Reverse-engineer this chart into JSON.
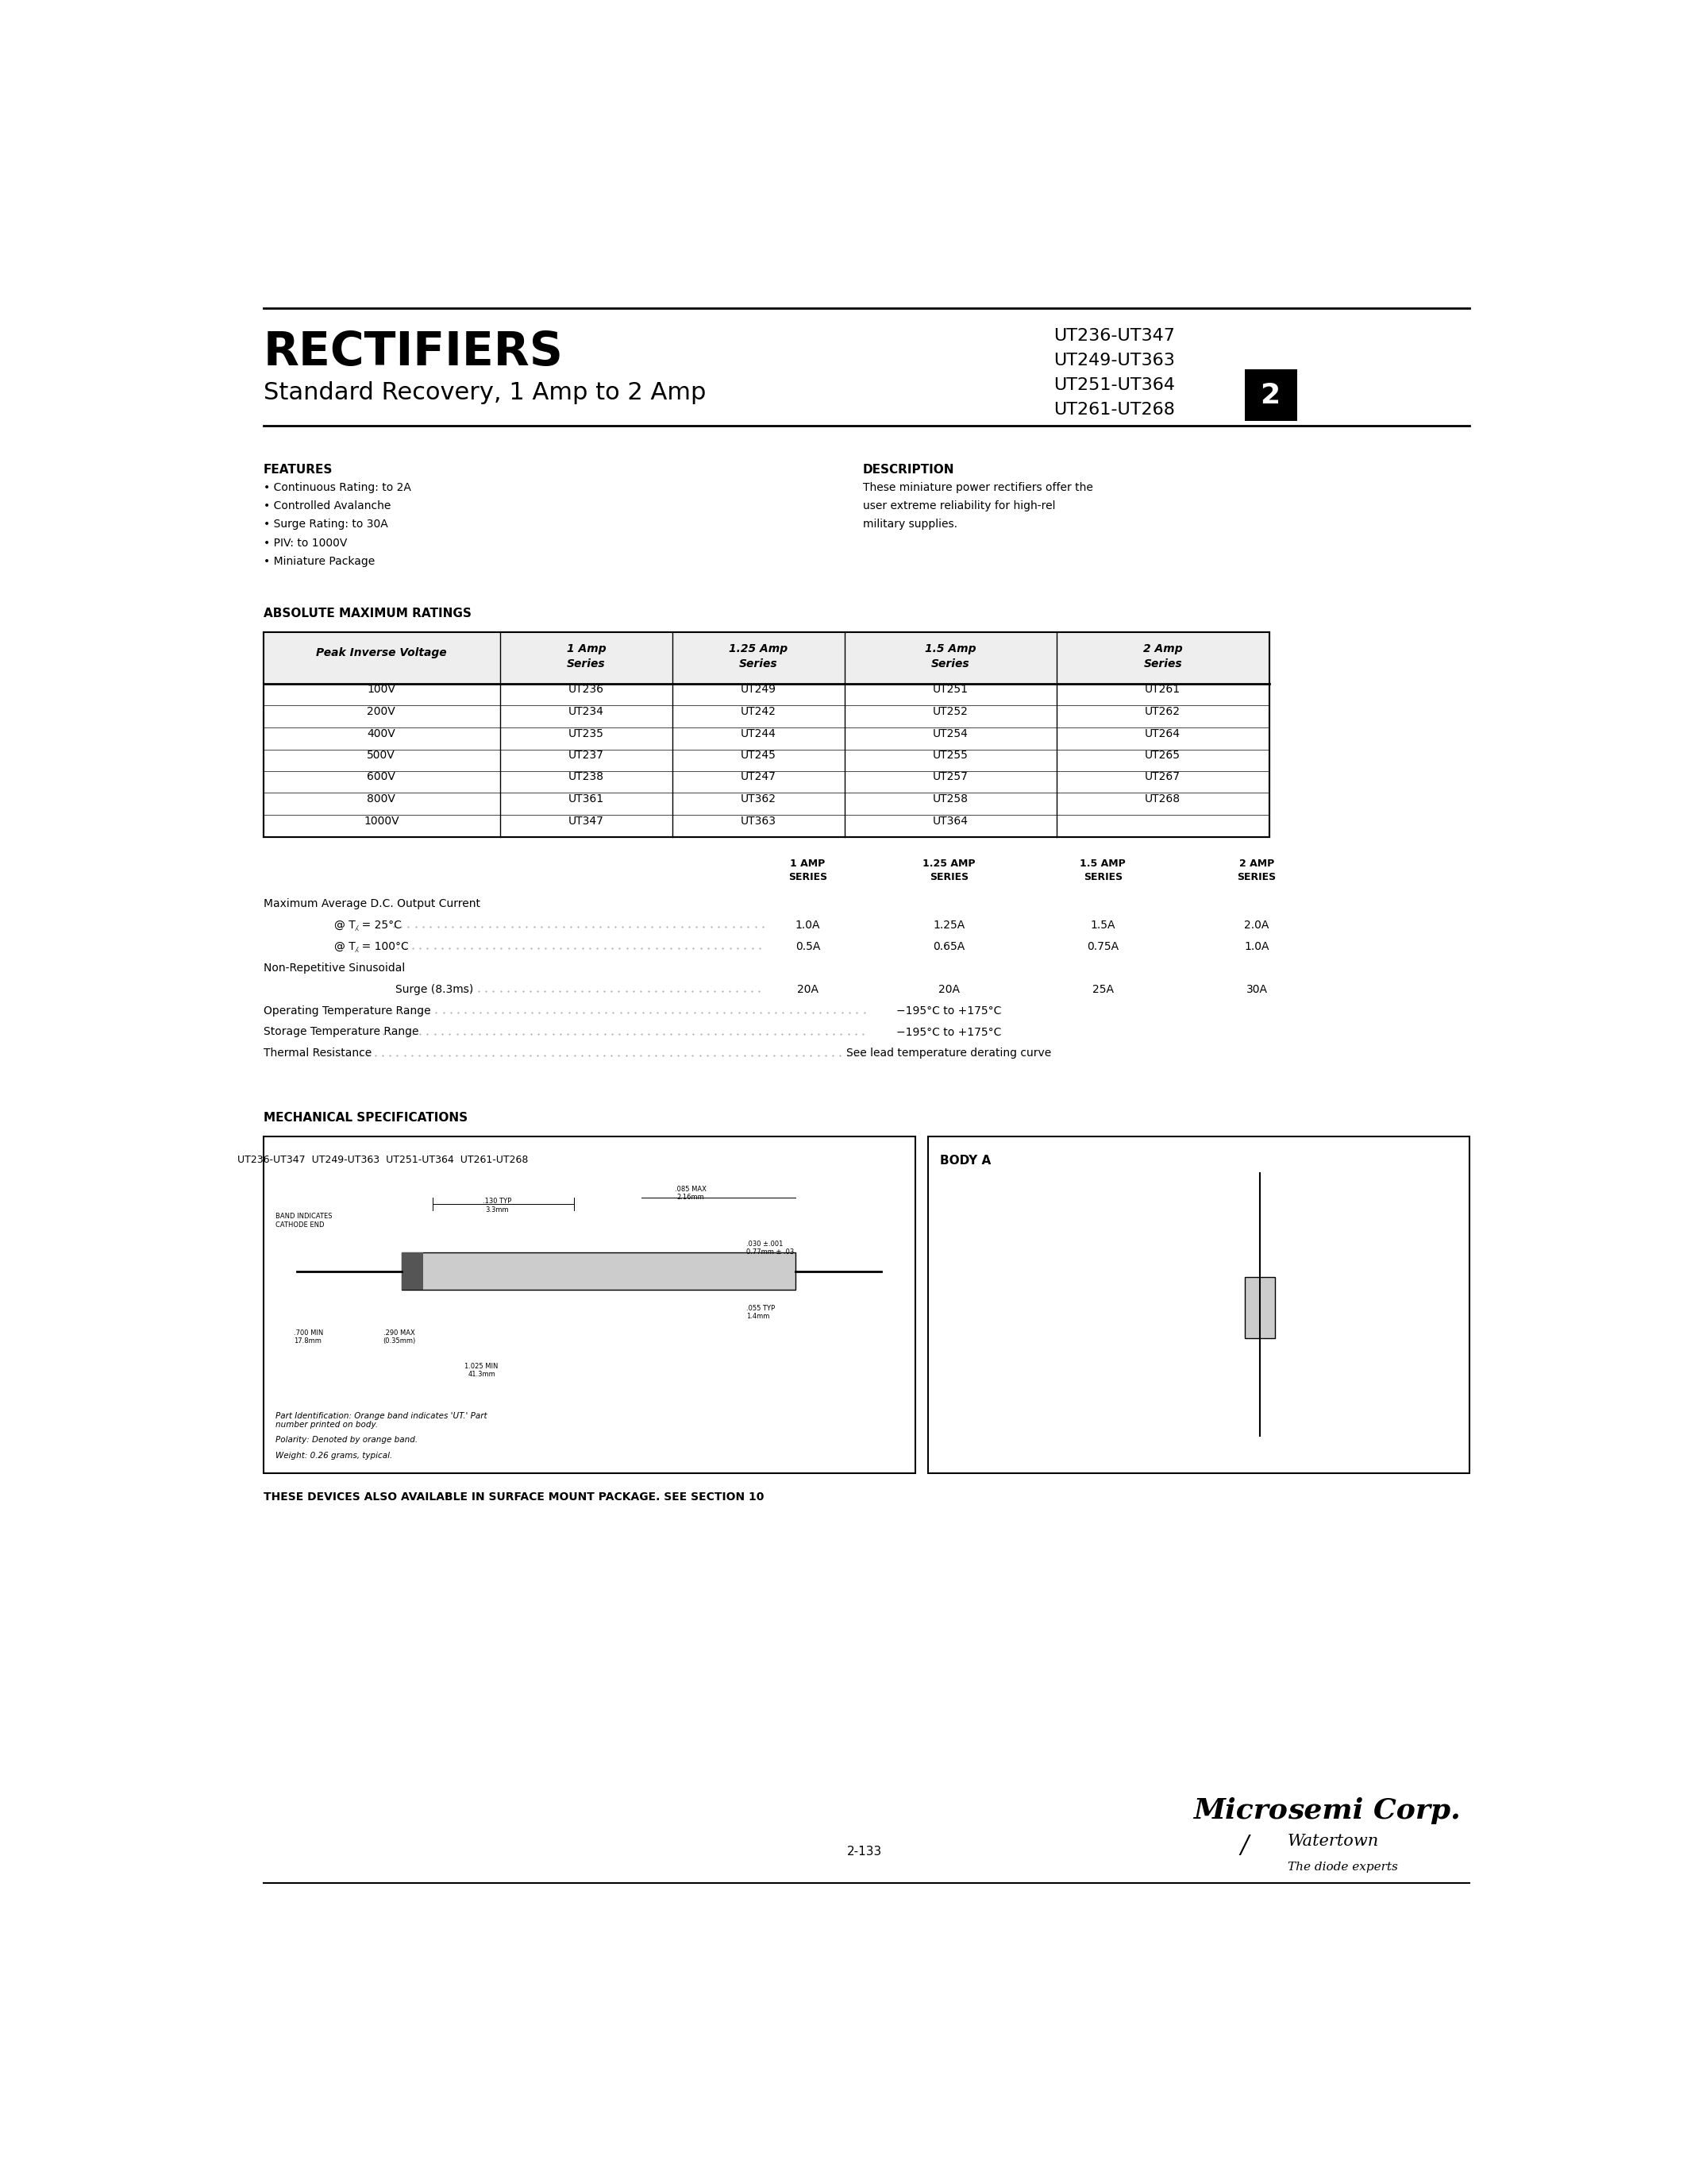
{
  "bg_color": "#ffffff",
  "title": "RECTIFIERS",
  "subtitle": "Standard Recovery, 1 Amp to 2 Amp",
  "part_numbers": [
    "UT236-UT347",
    "UT249-UT363",
    "UT251-UT364",
    "UT261-UT268"
  ],
  "section_number": "2",
  "features_title": "FEATURES",
  "features": [
    "Continuous Rating: to 2A",
    "Controlled Avalanche",
    "Surge Rating: to 30A",
    "PIV: to 1000V",
    "Miniature Package"
  ],
  "description_title": "DESCRIPTION",
  "description_lines": [
    "These miniature power rectifiers offer the",
    "user extreme reliability for high-rel",
    "military supplies."
  ],
  "abs_max_title": "ABSOLUTE MAXIMUM RATINGS",
  "table_headers": [
    "Peak Inverse Voltage",
    "1 Amp\nSeries",
    "1.25 Amp\nSeries",
    "1.5 Amp\nSeries",
    "2 Amp\nSeries"
  ],
  "table_rows": [
    [
      "100V",
      "UT236",
      "UT249",
      "UT251",
      "UT261"
    ],
    [
      "200V",
      "UT234",
      "UT242",
      "UT252",
      "UT262"
    ],
    [
      "400V",
      "UT235",
      "UT244",
      "UT254",
      "UT264"
    ],
    [
      "500V",
      "UT237",
      "UT245",
      "UT255",
      "UT265"
    ],
    [
      "600V",
      "UT238",
      "UT247",
      "UT257",
      "UT267"
    ],
    [
      "800V",
      "UT361",
      "UT362",
      "UT258",
      "UT268"
    ],
    [
      "1000V",
      "UT347",
      "UT363",
      "UT364",
      ""
    ]
  ],
  "mech_title": "MECHANICAL SPECIFICATIONS",
  "footer_text": "THESE DEVICES ALSO AVAILABLE IN SURFACE MOUNT PACKAGE. SEE SECTION 10",
  "page_num": "2-133",
  "logo_text": "Micro)semi Corp.",
  "logo_sub": "Watertown",
  "logo_tag": "The diode experts"
}
